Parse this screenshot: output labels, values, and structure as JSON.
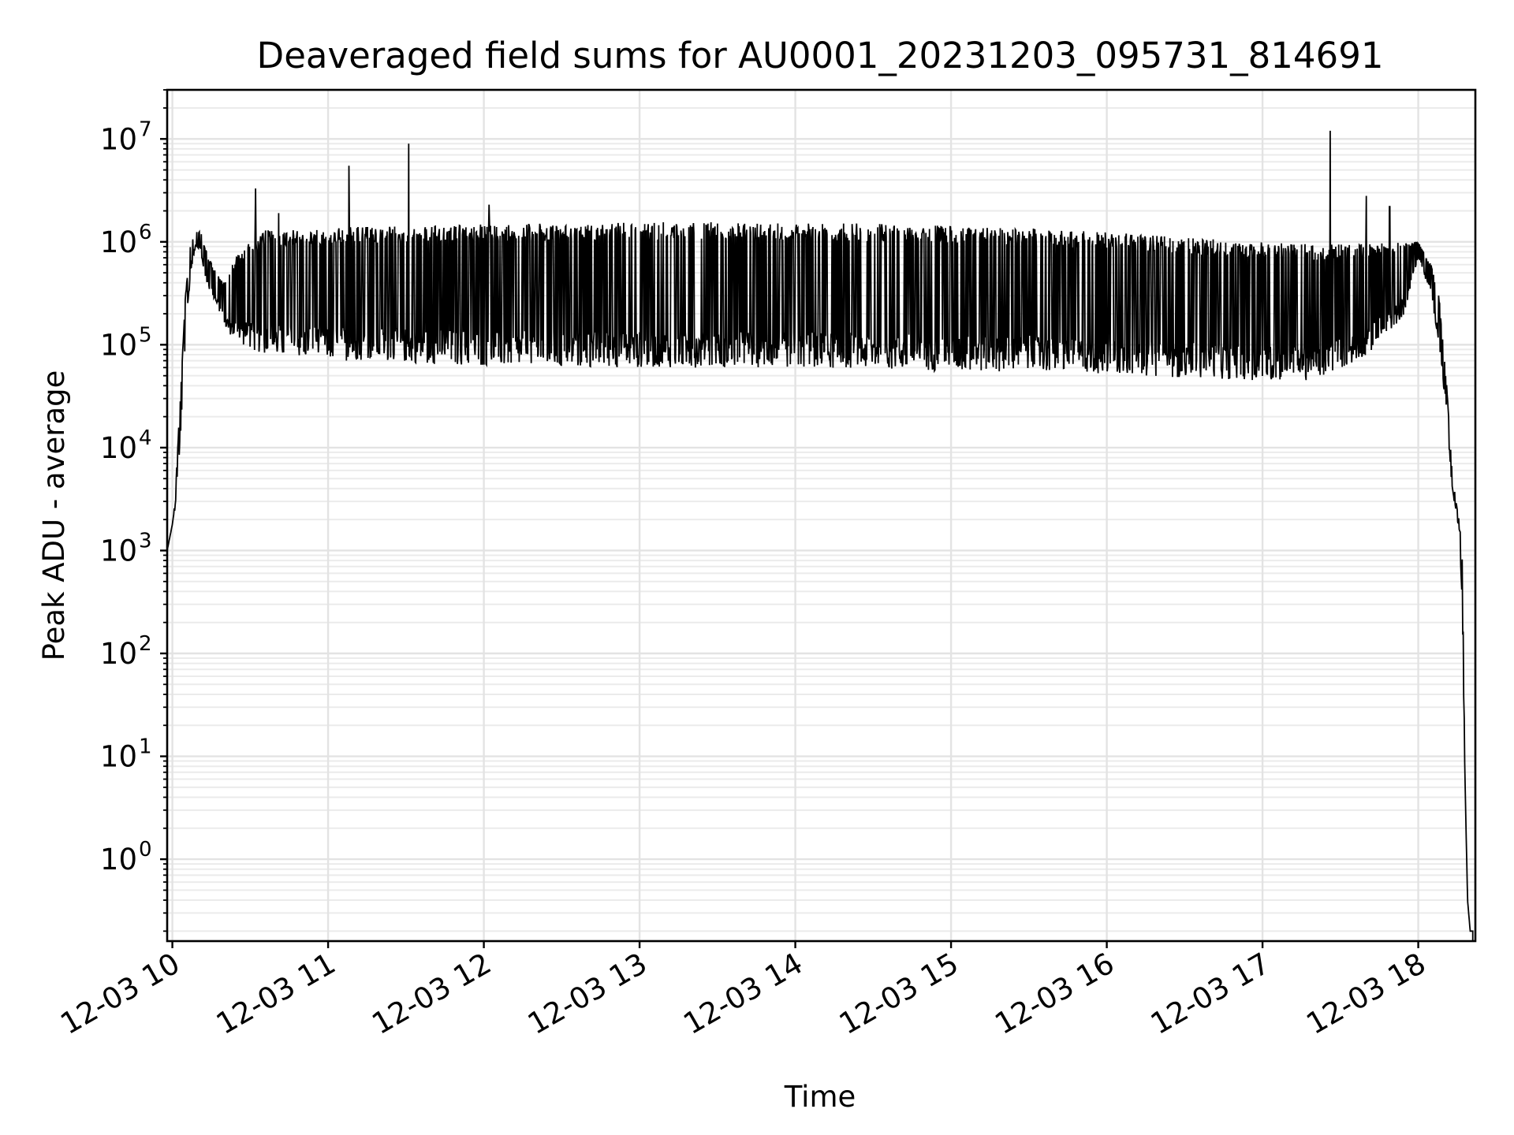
{
  "chart_data": {
    "type": "line",
    "title": "Deaveraged field sums for AU0001_20231203_095731_814691",
    "xlabel": "Time",
    "ylabel": "Peak ADU - average",
    "y_scale": "log",
    "ylim": [
      0.16,
      30000000
    ],
    "xlim": [
      "2023-12-03 09:58",
      "2023-12-03 18:22"
    ],
    "grid": true,
    "x_ticks": [
      "12-03 10",
      "12-03 11",
      "12-03 12",
      "12-03 13",
      "12-03 14",
      "12-03 15",
      "12-03 16",
      "12-03 17",
      "12-03 18"
    ],
    "x_tick_times": [
      "2023-12-03 10:00",
      "2023-12-03 11:00",
      "2023-12-03 12:00",
      "2023-12-03 13:00",
      "2023-12-03 14:00",
      "2023-12-03 15:00",
      "2023-12-03 16:00",
      "2023-12-03 17:00",
      "2023-12-03 18:00"
    ],
    "y_ticks": [
      {
        "base": "10",
        "exp": "0",
        "value": 1
      },
      {
        "base": "10",
        "exp": "1",
        "value": 10
      },
      {
        "base": "10",
        "exp": "2",
        "value": 100
      },
      {
        "base": "10",
        "exp": "3",
        "value": 1000
      },
      {
        "base": "10",
        "exp": "4",
        "value": 10000
      },
      {
        "base": "10",
        "exp": "5",
        "value": 100000
      },
      {
        "base": "10",
        "exp": "6",
        "value": 1000000
      },
      {
        "base": "10",
        "exp": "7",
        "value": 10000000
      }
    ],
    "series": [
      {
        "color": "#000000",
        "x": [
          "2023-12-03 09:58",
          "2023-12-03 10:00",
          "2023-12-03 10:01",
          "2023-12-03 10:03",
          "2023-12-03 10:05",
          "2023-12-03 10:07",
          "2023-12-03 10:09",
          "2023-12-03 10:11",
          "2023-12-03 10:12",
          "2023-12-03 10:14",
          "2023-12-03 10:17",
          "2023-12-03 10:20",
          "2023-12-03 10:24",
          "2023-12-03 10:30",
          "2023-12-03 10:36",
          "2023-12-03 10:45",
          "2023-12-03 10:55",
          "2023-12-03 11:05",
          "2023-12-03 11:20",
          "2023-12-03 11:40",
          "2023-12-03 12:00",
          "2023-12-03 12:30",
          "2023-12-03 13:00",
          "2023-12-03 13:30",
          "2023-12-03 14:00",
          "2023-12-03 14:30",
          "2023-12-03 15:00",
          "2023-12-03 15:30",
          "2023-12-03 16:00",
          "2023-12-03 16:30",
          "2023-12-03 17:00",
          "2023-12-03 17:20",
          "2023-12-03 17:40",
          "2023-12-03 17:55",
          "2023-12-03 18:00",
          "2023-12-03 18:05",
          "2023-12-03 18:08",
          "2023-12-03 18:11",
          "2023-12-03 18:13",
          "2023-12-03 18:15",
          "2023-12-03 18:16",
          "2023-12-03 18:17",
          "2023-12-03 18:18",
          "2023-12-03 18:19",
          "2023-12-03 18:20",
          "2023-12-03 18:21"
        ],
        "low": [
          1000,
          1800,
          2500,
          10000,
          100000,
          500000,
          900000,
          800000,
          500000,
          350000,
          250000,
          150000,
          110000,
          90000,
          80000,
          75000,
          75000,
          70000,
          70000,
          65000,
          62000,
          60000,
          60000,
          60000,
          60000,
          58000,
          55000,
          55000,
          52000,
          48000,
          45000,
          45000,
          75000,
          200000,
          700000,
          300000,
          100000,
          20000,
          4000,
          2000,
          1500,
          200,
          6,
          0.4,
          0.2,
          0.2
        ],
        "high": [
          1000,
          1800,
          3000,
          30000,
          300000,
          1000000,
          1250000,
          1250000,
          1000000,
          700000,
          500000,
          400000,
          700000,
          1000000,
          1300000,
          1300000,
          1300000,
          1400000,
          1400000,
          1450000,
          1500000,
          1500000,
          1550000,
          1550000,
          1550000,
          1500000,
          1450000,
          1350000,
          1250000,
          1100000,
          1000000,
          950000,
          950000,
          1000000,
          1000000,
          600000,
          300000,
          40000,
          6000,
          2500,
          1800,
          800,
          6,
          0.4,
          0.2,
          0.2
        ],
        "spikes": [
          {
            "x": "2023-12-03 10:32",
            "y": 3300000
          },
          {
            "x": "2023-12-03 10:41",
            "y": 1900000
          },
          {
            "x": "2023-12-03 11:08",
            "y": 5500000
          },
          {
            "x": "2023-12-03 11:31",
            "y": 9000000
          },
          {
            "x": "2023-12-03 12:02",
            "y": 2300000
          },
          {
            "x": "2023-12-03 17:26",
            "y": 12000000
          },
          {
            "x": "2023-12-03 17:40",
            "y": 2800000
          },
          {
            "x": "2023-12-03 17:49",
            "y": 2200000
          }
        ]
      }
    ]
  }
}
